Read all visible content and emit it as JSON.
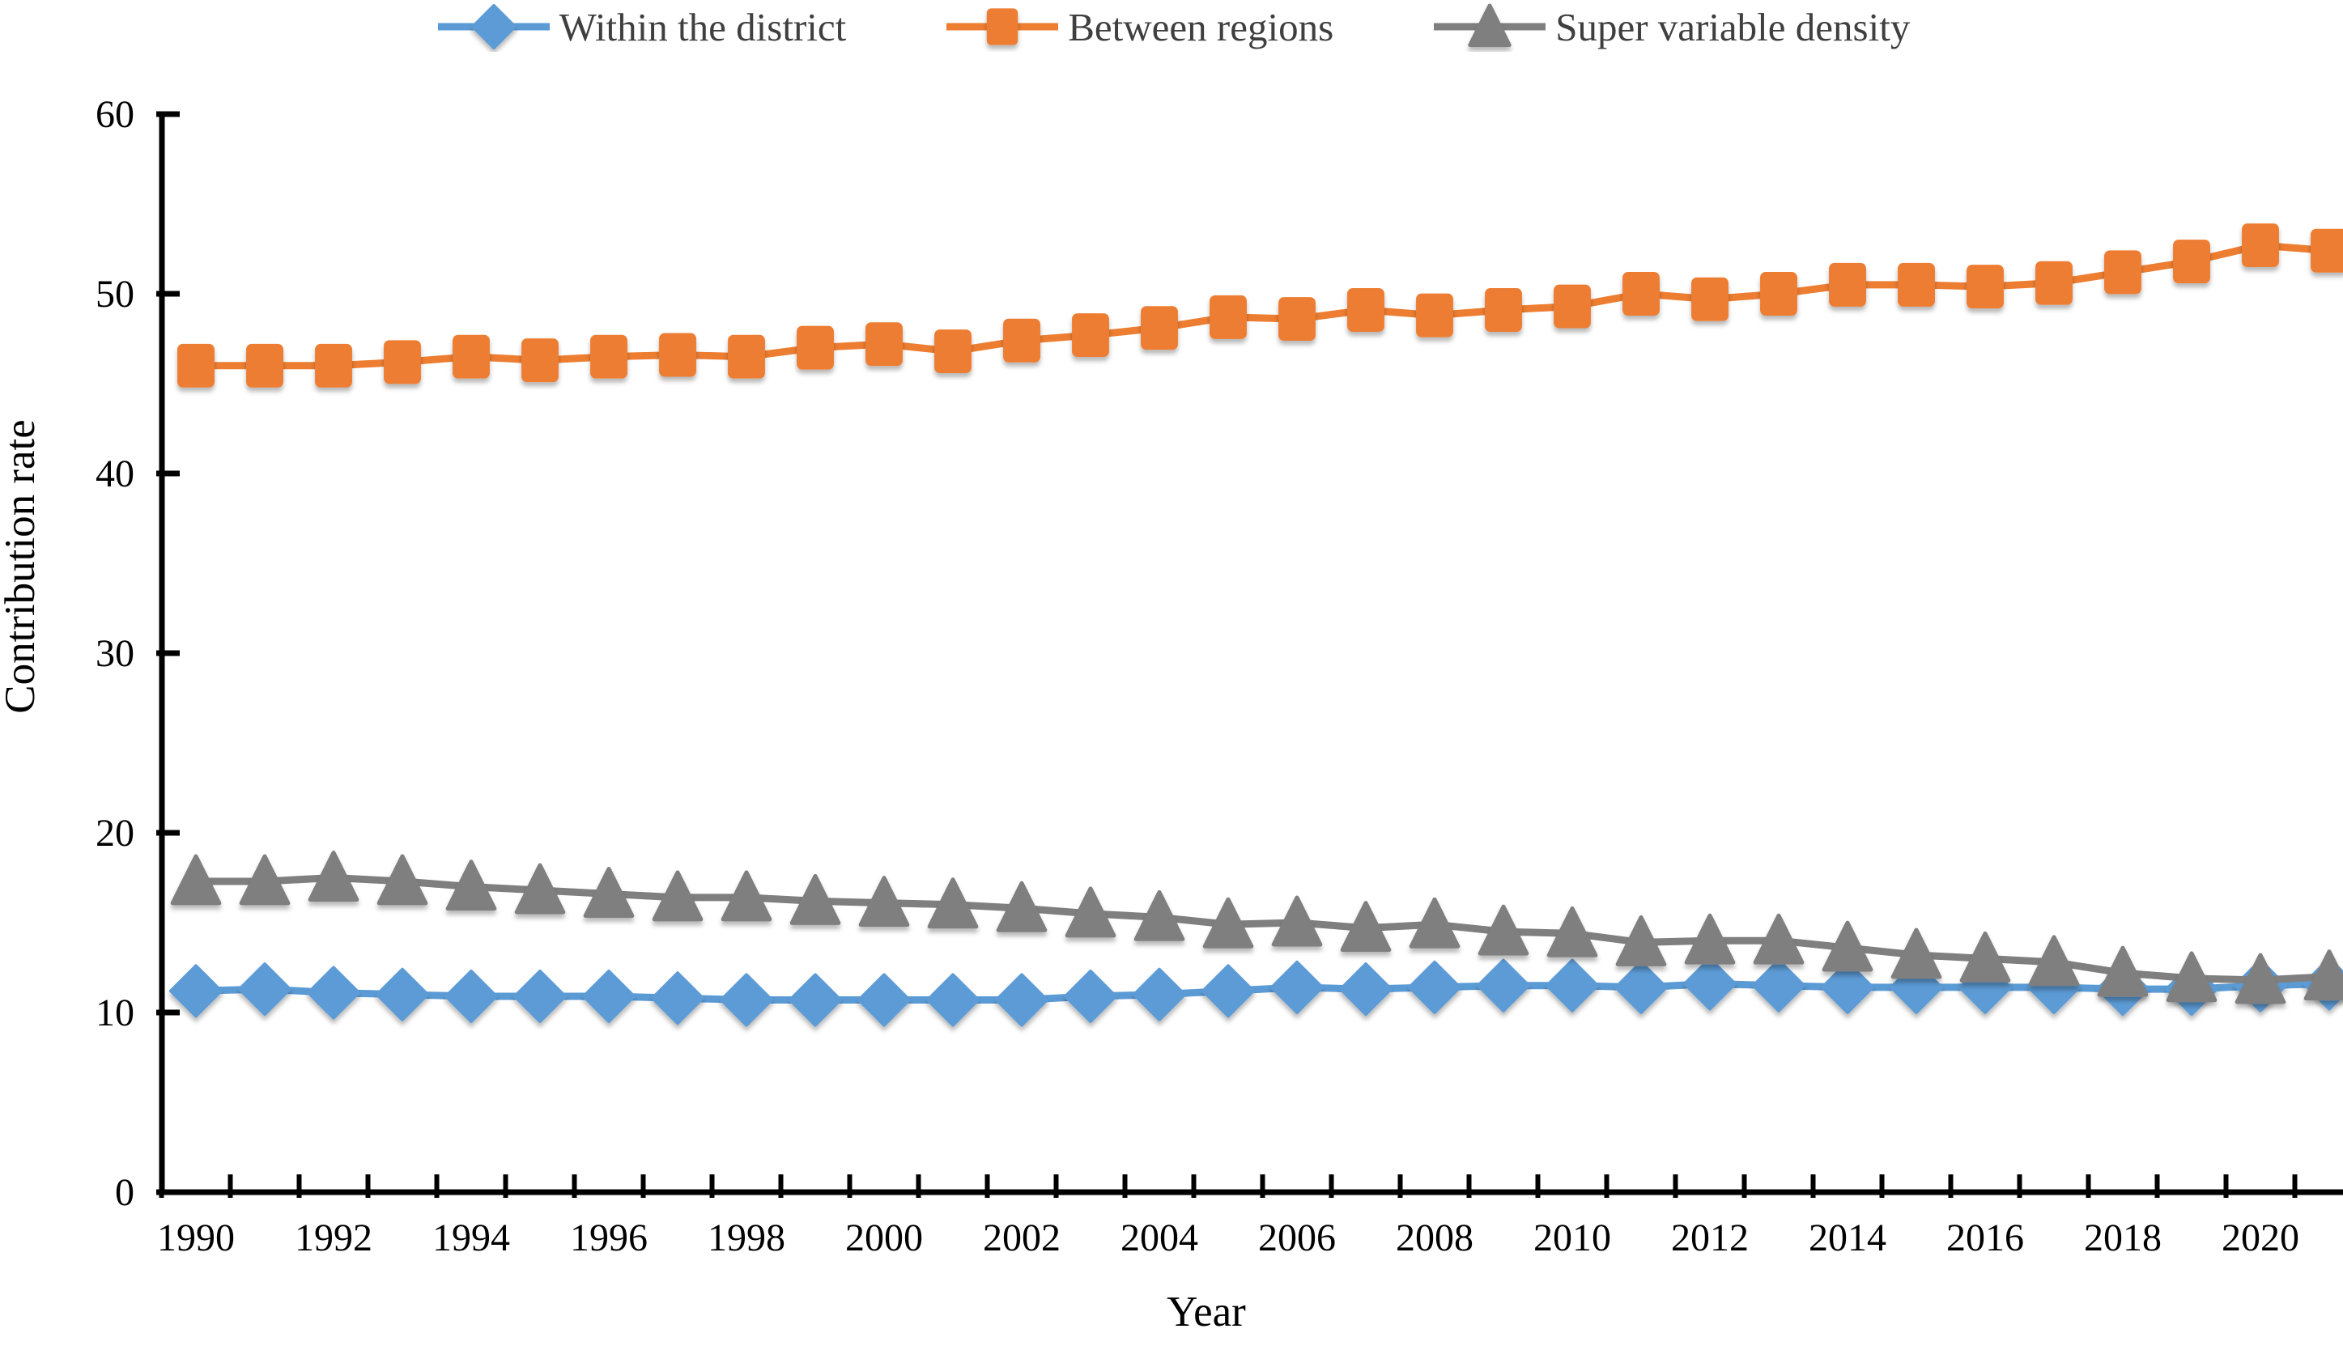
{
  "chart_data": {
    "type": "line",
    "title": "",
    "xlabel": "Year",
    "ylabel": "Contribution rate",
    "ylim": [
      0,
      60
    ],
    "yticks": [
      0,
      10,
      20,
      30,
      40,
      50,
      60
    ],
    "ytick_labels": [
      "0",
      "10",
      "20",
      "30",
      "40",
      "50",
      "60"
    ],
    "x": [
      1990,
      1991,
      1992,
      1993,
      1994,
      1995,
      1996,
      1997,
      1998,
      1999,
      2000,
      2001,
      2002,
      2003,
      2004,
      2005,
      2006,
      2007,
      2008,
      2009,
      2010,
      2011,
      2012,
      2013,
      2014,
      2015,
      2016,
      2017,
      2018,
      2019,
      2020,
      2021
    ],
    "xtick_labels": [
      "1990",
      "1992",
      "1994",
      "1996",
      "1998",
      "2000",
      "2002",
      "2004",
      "2006",
      "2008",
      "2010",
      "2012",
      "2014",
      "2016",
      "2018",
      "2020"
    ],
    "grid": false,
    "legend_position": "top",
    "series": [
      {
        "name": "Within the district",
        "color": "#5B9BD5",
        "marker": "diamond",
        "values": [
          11.2,
          11.3,
          11.1,
          11.0,
          10.9,
          10.9,
          10.9,
          10.8,
          10.7,
          10.7,
          10.7,
          10.7,
          10.7,
          10.9,
          11.0,
          11.2,
          11.4,
          11.3,
          11.4,
          11.5,
          11.5,
          11.4,
          11.6,
          11.5,
          11.4,
          11.4,
          11.4,
          11.4,
          11.3,
          11.3,
          11.5,
          11.6
        ]
      },
      {
        "name": "Between regions",
        "color": "#ED7D31",
        "marker": "square",
        "values": [
          46.0,
          46.0,
          46.0,
          46.2,
          46.5,
          46.3,
          46.5,
          46.6,
          46.5,
          47.0,
          47.2,
          46.8,
          47.4,
          47.7,
          48.1,
          48.7,
          48.6,
          49.1,
          48.8,
          49.1,
          49.3,
          50.0,
          49.7,
          50.0,
          50.5,
          50.5,
          50.4,
          50.6,
          51.2,
          51.8,
          52.7,
          52.4
        ]
      },
      {
        "name": "Super variable density",
        "color": "#7F7F7F",
        "marker": "triangle",
        "values": [
          17.3,
          17.3,
          17.5,
          17.3,
          17.0,
          16.8,
          16.6,
          16.4,
          16.4,
          16.2,
          16.1,
          16.0,
          15.8,
          15.5,
          15.3,
          14.9,
          15.0,
          14.7,
          14.9,
          14.5,
          14.4,
          13.9,
          14.0,
          14.0,
          13.6,
          13.2,
          13.0,
          12.8,
          12.2,
          11.9,
          11.8,
          12.0
        ]
      }
    ],
    "colors": {
      "axis": "#000000",
      "tick_text": "#000000",
      "legend_text": "#3f3f3f",
      "background": "#ffffff"
    }
  }
}
